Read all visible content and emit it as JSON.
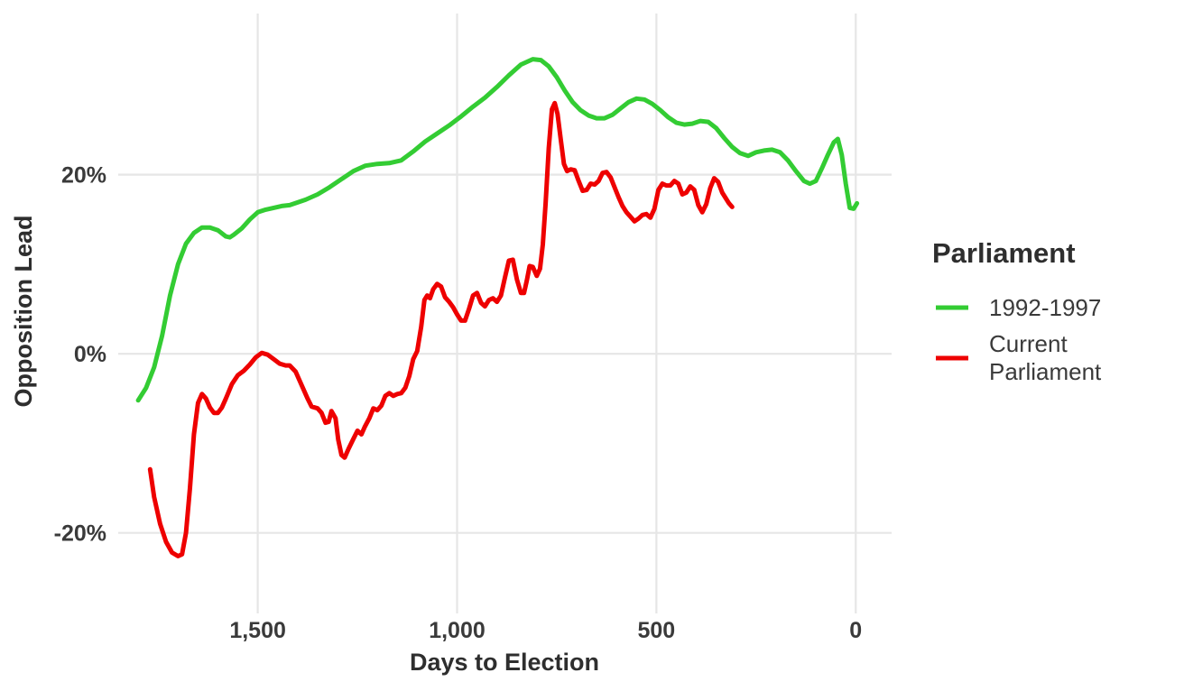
{
  "chart_data": {
    "type": "line",
    "title": "",
    "xlabel": "Days to Election",
    "ylabel": "Opposition Lead",
    "x_reversed": true,
    "xlim": [
      1850,
      -90
    ],
    "ylim": [
      -0.29,
      0.38
    ],
    "x_ticks": [
      1500,
      1000,
      500,
      0
    ],
    "x_tick_labels": [
      "1,500",
      "1,000",
      "500",
      "0"
    ],
    "y_ticks": [
      -0.2,
      0,
      0.2
    ],
    "y_tick_labels": [
      "-20%",
      "0%",
      "20%"
    ],
    "grid": true,
    "legend": {
      "title": "Parliament",
      "placement": "right"
    },
    "series": [
      {
        "name": "1992-1997",
        "color": "#33cc33",
        "points": [
          [
            1800,
            -0.052
          ],
          [
            1780,
            -0.038
          ],
          [
            1760,
            -0.015
          ],
          [
            1740,
            0.02
          ],
          [
            1720,
            0.065
          ],
          [
            1700,
            0.1
          ],
          [
            1680,
            0.123
          ],
          [
            1660,
            0.135
          ],
          [
            1640,
            0.141
          ],
          [
            1620,
            0.141
          ],
          [
            1600,
            0.138
          ],
          [
            1580,
            0.131
          ],
          [
            1570,
            0.13
          ],
          [
            1560,
            0.133
          ],
          [
            1540,
            0.14
          ],
          [
            1520,
            0.15
          ],
          [
            1500,
            0.158
          ],
          [
            1480,
            0.161
          ],
          [
            1460,
            0.163
          ],
          [
            1440,
            0.165
          ],
          [
            1420,
            0.166
          ],
          [
            1400,
            0.169
          ],
          [
            1380,
            0.172
          ],
          [
            1350,
            0.178
          ],
          [
            1320,
            0.186
          ],
          [
            1290,
            0.195
          ],
          [
            1260,
            0.204
          ],
          [
            1230,
            0.21
          ],
          [
            1200,
            0.212
          ],
          [
            1170,
            0.213
          ],
          [
            1140,
            0.216
          ],
          [
            1110,
            0.226
          ],
          [
            1080,
            0.237
          ],
          [
            1050,
            0.246
          ],
          [
            1020,
            0.255
          ],
          [
            990,
            0.265
          ],
          [
            960,
            0.276
          ],
          [
            930,
            0.286
          ],
          [
            900,
            0.298
          ],
          [
            870,
            0.311
          ],
          [
            840,
            0.323
          ],
          [
            810,
            0.329
          ],
          [
            790,
            0.328
          ],
          [
            770,
            0.321
          ],
          [
            750,
            0.309
          ],
          [
            730,
            0.294
          ],
          [
            710,
            0.281
          ],
          [
            690,
            0.272
          ],
          [
            670,
            0.266
          ],
          [
            650,
            0.263
          ],
          [
            630,
            0.263
          ],
          [
            610,
            0.267
          ],
          [
            590,
            0.274
          ],
          [
            570,
            0.281
          ],
          [
            550,
            0.285
          ],
          [
            530,
            0.284
          ],
          [
            510,
            0.279
          ],
          [
            490,
            0.272
          ],
          [
            470,
            0.264
          ],
          [
            450,
            0.258
          ],
          [
            430,
            0.256
          ],
          [
            410,
            0.257
          ],
          [
            390,
            0.26
          ],
          [
            370,
            0.259
          ],
          [
            350,
            0.252
          ],
          [
            330,
            0.241
          ],
          [
            310,
            0.231
          ],
          [
            290,
            0.224
          ],
          [
            270,
            0.221
          ],
          [
            250,
            0.225
          ],
          [
            230,
            0.227
          ],
          [
            210,
            0.228
          ],
          [
            190,
            0.225
          ],
          [
            170,
            0.216
          ],
          [
            150,
            0.204
          ],
          [
            130,
            0.193
          ],
          [
            115,
            0.19
          ],
          [
            100,
            0.193
          ],
          [
            85,
            0.207
          ],
          [
            70,
            0.222
          ],
          [
            55,
            0.236
          ],
          [
            45,
            0.24
          ],
          [
            35,
            0.222
          ],
          [
            25,
            0.19
          ],
          [
            15,
            0.163
          ],
          [
            5,
            0.162
          ],
          [
            -3,
            0.168
          ]
        ]
      },
      {
        "name": "Current Parliament",
        "color": "#ee0000",
        "points": [
          [
            1770,
            -0.129
          ],
          [
            1760,
            -0.16
          ],
          [
            1745,
            -0.19
          ],
          [
            1730,
            -0.21
          ],
          [
            1715,
            -0.222
          ],
          [
            1700,
            -0.226
          ],
          [
            1690,
            -0.224
          ],
          [
            1680,
            -0.2
          ],
          [
            1670,
            -0.15
          ],
          [
            1660,
            -0.09
          ],
          [
            1650,
            -0.055
          ],
          [
            1640,
            -0.045
          ],
          [
            1630,
            -0.05
          ],
          [
            1620,
            -0.06
          ],
          [
            1610,
            -0.066
          ],
          [
            1600,
            -0.066
          ],
          [
            1590,
            -0.06
          ],
          [
            1580,
            -0.05
          ],
          [
            1565,
            -0.034
          ],
          [
            1550,
            -0.024
          ],
          [
            1535,
            -0.019
          ],
          [
            1520,
            -0.012
          ],
          [
            1505,
            -0.004
          ],
          [
            1490,
            0.001
          ],
          [
            1475,
            -0.001
          ],
          [
            1460,
            -0.006
          ],
          [
            1445,
            -0.011
          ],
          [
            1430,
            -0.013
          ],
          [
            1420,
            -0.013
          ],
          [
            1405,
            -0.02
          ],
          [
            1390,
            -0.035
          ],
          [
            1375,
            -0.05
          ],
          [
            1365,
            -0.059
          ],
          [
            1350,
            -0.061
          ],
          [
            1340,
            -0.066
          ],
          [
            1330,
            -0.077
          ],
          [
            1322,
            -0.076
          ],
          [
            1315,
            -0.064
          ],
          [
            1305,
            -0.072
          ],
          [
            1298,
            -0.096
          ],
          [
            1290,
            -0.113
          ],
          [
            1282,
            -0.116
          ],
          [
            1272,
            -0.106
          ],
          [
            1260,
            -0.095
          ],
          [
            1250,
            -0.086
          ],
          [
            1240,
            -0.09
          ],
          [
            1232,
            -0.082
          ],
          [
            1220,
            -0.072
          ],
          [
            1210,
            -0.061
          ],
          [
            1200,
            -0.063
          ],
          [
            1190,
            -0.058
          ],
          [
            1180,
            -0.047
          ],
          [
            1170,
            -0.044
          ],
          [
            1160,
            -0.047
          ],
          [
            1150,
            -0.045
          ],
          [
            1140,
            -0.044
          ],
          [
            1130,
            -0.038
          ],
          [
            1120,
            -0.025
          ],
          [
            1110,
            -0.006
          ],
          [
            1100,
            0.003
          ],
          [
            1090,
            0.03
          ],
          [
            1082,
            0.06
          ],
          [
            1075,
            0.065
          ],
          [
            1068,
            0.062
          ],
          [
            1060,
            0.072
          ],
          [
            1050,
            0.078
          ],
          [
            1040,
            0.075
          ],
          [
            1030,
            0.063
          ],
          [
            1020,
            0.058
          ],
          [
            1010,
            0.052
          ],
          [
            1000,
            0.044
          ],
          [
            990,
            0.037
          ],
          [
            980,
            0.037
          ],
          [
            970,
            0.05
          ],
          [
            960,
            0.065
          ],
          [
            950,
            0.068
          ],
          [
            940,
            0.057
          ],
          [
            930,
            0.053
          ],
          [
            920,
            0.06
          ],
          [
            910,
            0.062
          ],
          [
            900,
            0.058
          ],
          [
            890,
            0.065
          ],
          [
            880,
            0.085
          ],
          [
            870,
            0.104
          ],
          [
            860,
            0.105
          ],
          [
            850,
            0.083
          ],
          [
            840,
            0.068
          ],
          [
            832,
            0.068
          ],
          [
            825,
            0.082
          ],
          [
            818,
            0.098
          ],
          [
            810,
            0.097
          ],
          [
            800,
            0.087
          ],
          [
            792,
            0.095
          ],
          [
            785,
            0.122
          ],
          [
            778,
            0.168
          ],
          [
            770,
            0.23
          ],
          [
            762,
            0.273
          ],
          [
            755,
            0.28
          ],
          [
            748,
            0.268
          ],
          [
            740,
            0.24
          ],
          [
            732,
            0.212
          ],
          [
            724,
            0.204
          ],
          [
            715,
            0.206
          ],
          [
            705,
            0.205
          ],
          [
            695,
            0.193
          ],
          [
            685,
            0.182
          ],
          [
            675,
            0.183
          ],
          [
            665,
            0.19
          ],
          [
            655,
            0.189
          ],
          [
            645,
            0.193
          ],
          [
            635,
            0.202
          ],
          [
            625,
            0.203
          ],
          [
            615,
            0.197
          ],
          [
            605,
            0.186
          ],
          [
            595,
            0.175
          ],
          [
            585,
            0.165
          ],
          [
            575,
            0.158
          ],
          [
            565,
            0.153
          ],
          [
            555,
            0.148
          ],
          [
            545,
            0.151
          ],
          [
            535,
            0.155
          ],
          [
            525,
            0.156
          ],
          [
            515,
            0.152
          ],
          [
            505,
            0.162
          ],
          [
            495,
            0.183
          ],
          [
            485,
            0.19
          ],
          [
            475,
            0.188
          ],
          [
            465,
            0.188
          ],
          [
            455,
            0.193
          ],
          [
            445,
            0.19
          ],
          [
            435,
            0.178
          ],
          [
            425,
            0.18
          ],
          [
            415,
            0.187
          ],
          [
            405,
            0.183
          ],
          [
            395,
            0.166
          ],
          [
            385,
            0.158
          ],
          [
            375,
            0.167
          ],
          [
            365,
            0.185
          ],
          [
            355,
            0.196
          ],
          [
            345,
            0.192
          ],
          [
            335,
            0.18
          ],
          [
            325,
            0.173
          ],
          [
            318,
            0.168
          ],
          [
            310,
            0.164
          ]
        ]
      }
    ]
  }
}
